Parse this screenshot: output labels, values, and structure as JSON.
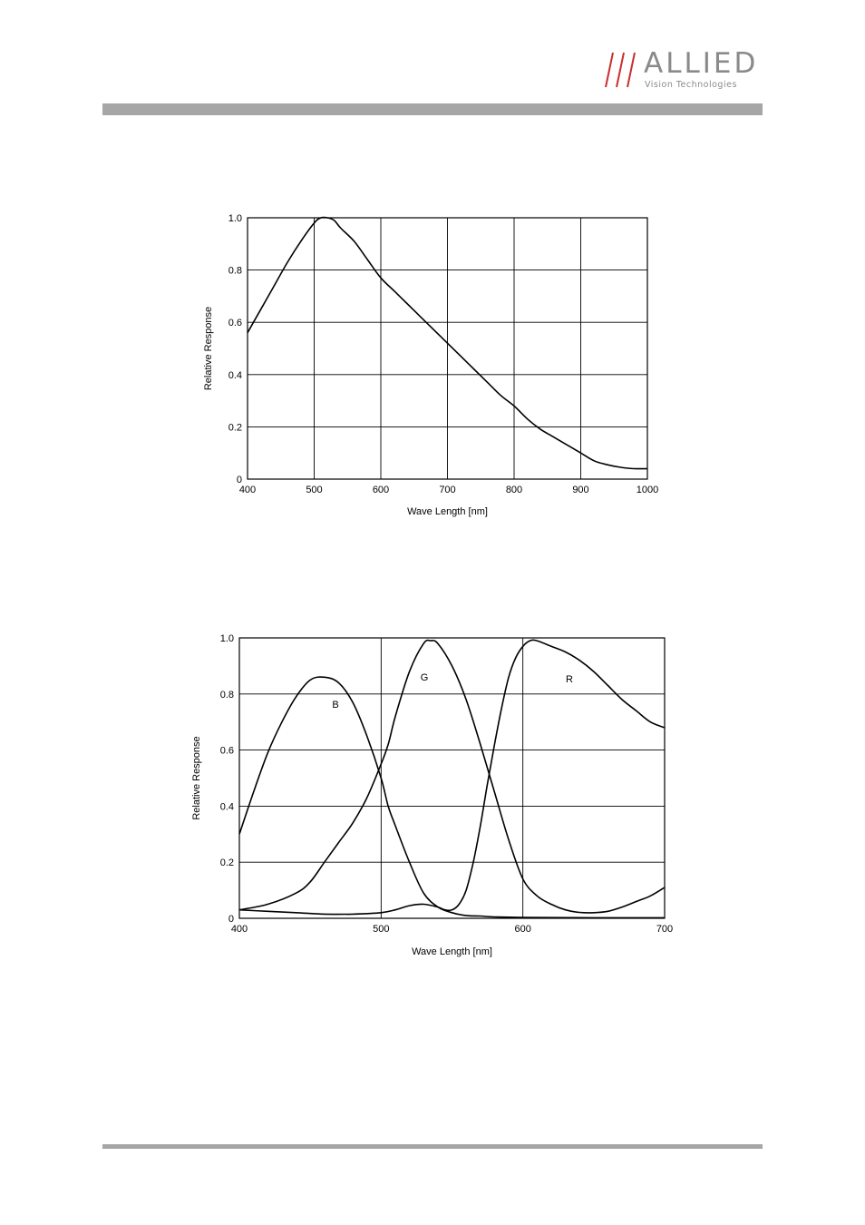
{
  "header": {
    "logo_text": "ALLIED",
    "logo_tagline": "Vision Technologies",
    "slash_color": "#c8302c",
    "bar_color": "#a6a6a6"
  },
  "chart_data": [
    {
      "type": "line",
      "xlabel": "Wave Length [nm]",
      "ylabel": "Relative Response",
      "xlim": [
        400,
        1000
      ],
      "ylim": [
        0,
        1.0
      ],
      "xticks": [
        "400",
        "500",
        "600",
        "700",
        "800",
        "900",
        "1000"
      ],
      "yticks": [
        "0",
        "0.2",
        "0.4",
        "0.6",
        "0.8",
        "1.0"
      ],
      "grid": true,
      "series": [
        {
          "x": [
            400,
            420,
            440,
            460,
            480,
            500,
            510,
            520,
            530,
            540,
            560,
            580,
            600,
            620,
            640,
            660,
            680,
            700,
            720,
            740,
            760,
            780,
            800,
            820,
            840,
            860,
            880,
            900,
            920,
            940,
            960,
            980,
            1000
          ],
          "y": [
            0.56,
            0.65,
            0.74,
            0.83,
            0.91,
            0.98,
            1.0,
            1.0,
            0.99,
            0.96,
            0.91,
            0.84,
            0.77,
            0.72,
            0.67,
            0.62,
            0.57,
            0.52,
            0.47,
            0.42,
            0.37,
            0.32,
            0.28,
            0.23,
            0.19,
            0.16,
            0.13,
            0.1,
            0.07,
            0.055,
            0.045,
            0.04,
            0.04
          ]
        }
      ]
    },
    {
      "type": "line",
      "xlabel": "Wave Length [nm]",
      "ylabel": "Relative Response",
      "xlim": [
        400,
        700
      ],
      "ylim": [
        0,
        1.0
      ],
      "xticks": [
        "400",
        "500",
        "600",
        "700"
      ],
      "yticks": [
        "0",
        "0.2",
        "0.4",
        "0.6",
        "0.8",
        "1.0"
      ],
      "grid": true,
      "series": [
        {
          "name": "B",
          "x": [
            400,
            410,
            420,
            430,
            440,
            450,
            460,
            470,
            480,
            490,
            500,
            505,
            510,
            520,
            530,
            540,
            550,
            560,
            570,
            580,
            600,
            650,
            700
          ],
          "y": [
            0.3,
            0.45,
            0.59,
            0.7,
            0.79,
            0.85,
            0.86,
            0.84,
            0.77,
            0.65,
            0.5,
            0.4,
            0.33,
            0.2,
            0.09,
            0.04,
            0.02,
            0.01,
            0.008,
            0.005,
            0.003,
            0.002,
            0.002
          ]
        },
        {
          "name": "G",
          "x": [
            400,
            420,
            440,
            450,
            460,
            470,
            480,
            490,
            500,
            505,
            510,
            520,
            530,
            535,
            540,
            550,
            560,
            570,
            580,
            590,
            600,
            610,
            620,
            630,
            640,
            650,
            660,
            670,
            680,
            690,
            700
          ],
          "y": [
            0.03,
            0.05,
            0.09,
            0.13,
            0.2,
            0.27,
            0.34,
            0.43,
            0.55,
            0.62,
            0.72,
            0.88,
            0.98,
            0.99,
            0.98,
            0.9,
            0.78,
            0.62,
            0.45,
            0.28,
            0.14,
            0.08,
            0.05,
            0.03,
            0.021,
            0.02,
            0.025,
            0.04,
            0.06,
            0.08,
            0.11
          ]
        },
        {
          "name": "R",
          "x": [
            400,
            420,
            440,
            460,
            480,
            500,
            510,
            520,
            530,
            540,
            545,
            550,
            555,
            560,
            565,
            570,
            575,
            580,
            585,
            590,
            595,
            600,
            605,
            610,
            620,
            630,
            640,
            650,
            660,
            670,
            680,
            690,
            700
          ],
          "y": [
            0.03,
            0.025,
            0.02,
            0.015,
            0.015,
            0.02,
            0.03,
            0.045,
            0.05,
            0.04,
            0.03,
            0.03,
            0.05,
            0.1,
            0.2,
            0.33,
            0.48,
            0.62,
            0.75,
            0.86,
            0.93,
            0.97,
            0.99,
            0.99,
            0.97,
            0.95,
            0.92,
            0.88,
            0.83,
            0.78,
            0.74,
            0.7,
            0.68
          ]
        }
      ]
    }
  ]
}
